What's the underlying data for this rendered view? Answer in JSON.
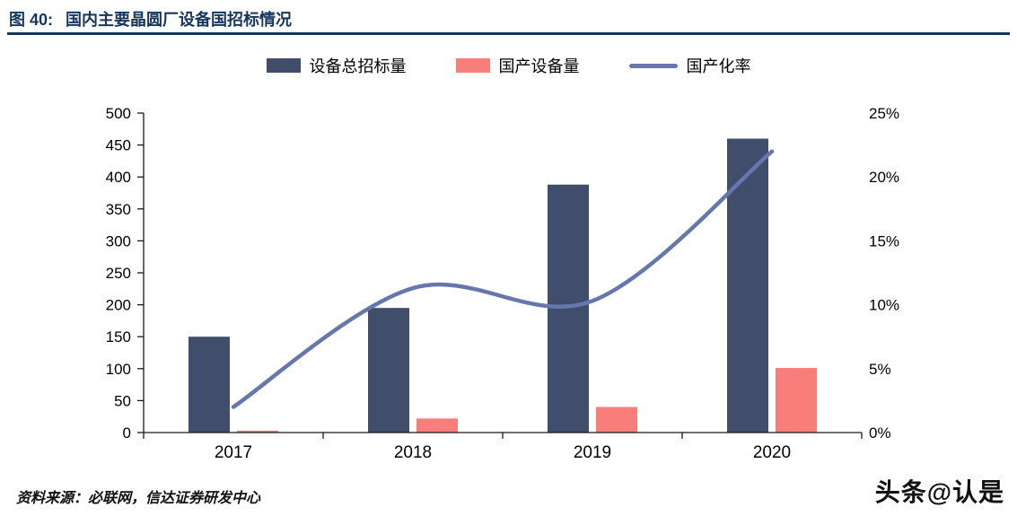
{
  "header": {
    "title_prefix": "图 40:",
    "title": "国内主要晶圆厂设备国招标情况"
  },
  "colors": {
    "title_navy": "#17365D",
    "bar_total": "#414E6B",
    "bar_domestic": "#F87E7C",
    "line_rate": "#6677AE",
    "axis": "#1A1A1A",
    "text": "#000000"
  },
  "legend": [
    {
      "label": "设备总招标量",
      "type": "bar",
      "color": "#414E6B"
    },
    {
      "label": "国产设备量",
      "type": "bar",
      "color": "#F87E7C"
    },
    {
      "label": "国产化率",
      "type": "line",
      "color": "#6677AE"
    }
  ],
  "chart_data": {
    "type": "bar",
    "subtype": "bar+line dual-axis combo",
    "title": "国内主要晶圆厂设备国招标情况",
    "categories": [
      "2017",
      "2018",
      "2019",
      "2020"
    ],
    "series": [
      {
        "name": "设备总招标量",
        "type": "bar",
        "axis": "left",
        "color": "#414E6B",
        "values": [
          150,
          195,
          388,
          460
        ]
      },
      {
        "name": "国产设备量",
        "type": "bar",
        "axis": "left",
        "color": "#F87E7C",
        "values": [
          3,
          22,
          40,
          101
        ]
      },
      {
        "name": "国产化率",
        "type": "line",
        "axis": "right",
        "color": "#6677AE",
        "smooth": true,
        "values_percent": [
          2.0,
          11.3,
          10.3,
          22.0
        ]
      }
    ],
    "left_axis": {
      "min": 0,
      "max": 500,
      "step": 50,
      "tick_labels": [
        "0",
        "50",
        "100",
        "150",
        "200",
        "250",
        "300",
        "350",
        "400",
        "450",
        "500"
      ]
    },
    "right_axis": {
      "min": 0,
      "max": 25,
      "step": 5,
      "unit": "%",
      "tick_labels": [
        "0%",
        "5%",
        "10%",
        "15%",
        "20%",
        "25%"
      ]
    },
    "grid": false,
    "legend_position": "top"
  },
  "footer": {
    "source": "资料来源：必联网，信达证券研发中心"
  },
  "watermark": "头条@认是"
}
